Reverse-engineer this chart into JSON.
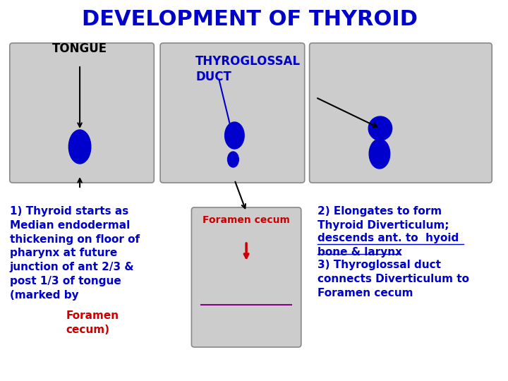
{
  "title": "DEVELOPMENT OF THYROID",
  "title_color": "#0000CC",
  "title_fontsize": 22,
  "bg_color": "#FFFFFF",
  "label_tongue": "TONGUE",
  "label_thyroglossal": "THYROGLOSSAL\nDUCT",
  "label_foramen": "Foramen cecum",
  "blue_color": "#0000CC",
  "red_color": "#CC0000",
  "black_color": "#000000",
  "purple_color": "#880088",
  "gray_color": "#CCCCCC",
  "edge_color": "#888888",
  "text_fontsize": 11,
  "label_fontsize": 12
}
